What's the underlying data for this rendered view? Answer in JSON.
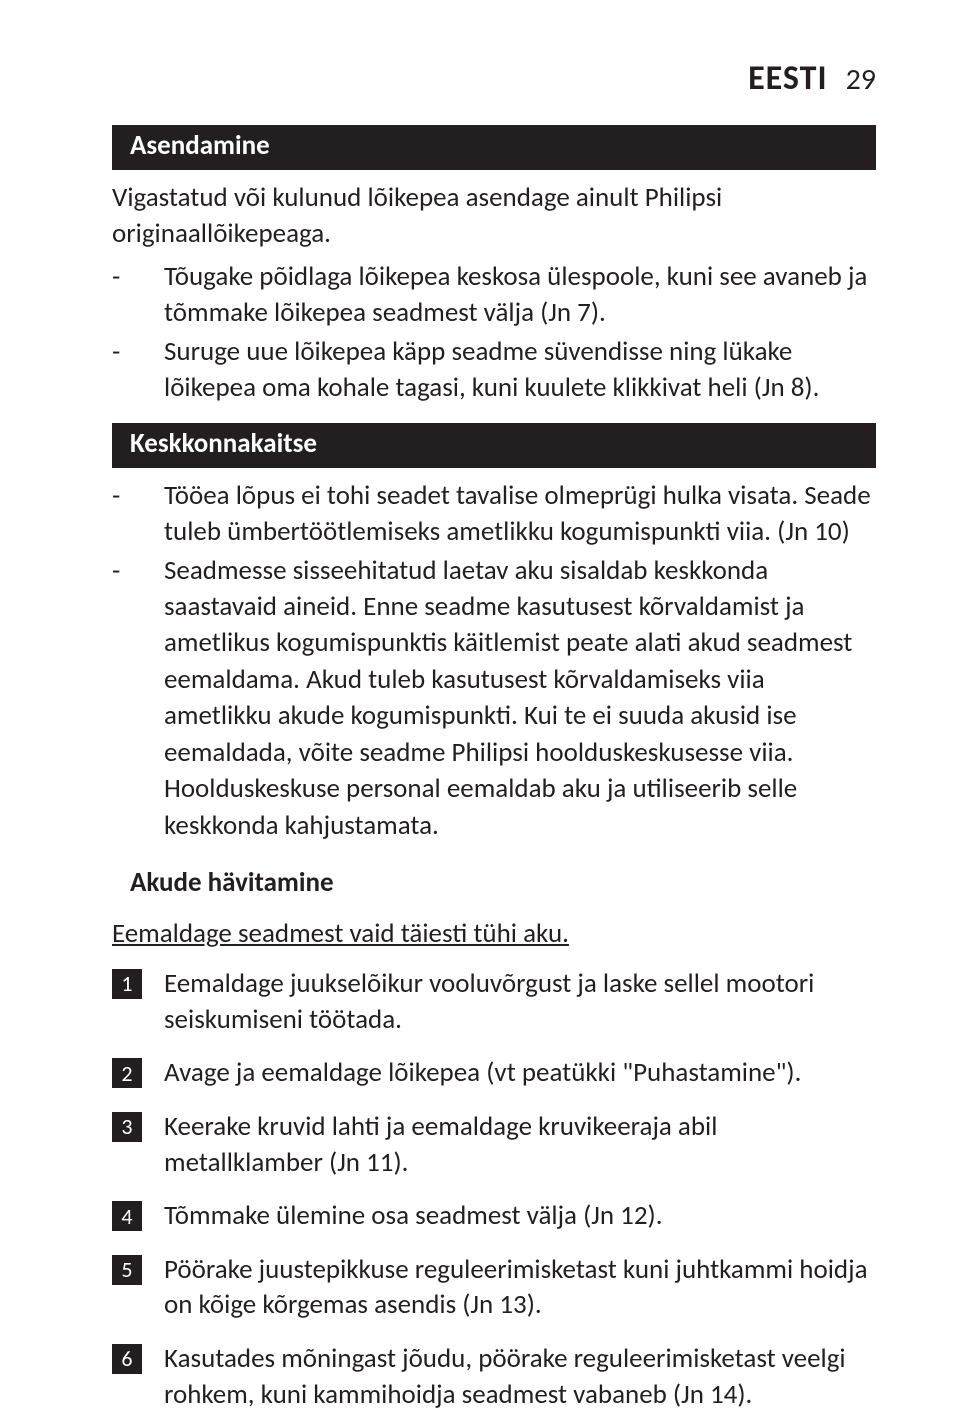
{
  "colors": {
    "bar_bg": "#231f20",
    "bar_text": "#ffffff",
    "body_text": "#231f20",
    "step_badge_bg": "#231f20",
    "step_badge_text": "#ffffff",
    "page_bg": "#ffffff"
  },
  "typography": {
    "body_pt": 20,
    "header_title_pt": 26,
    "header_page_pt": 22,
    "bar_pt": 20,
    "subhead_pt": 20,
    "step_badge_pt": 16
  },
  "header": {
    "title": "EESTI",
    "page": "29"
  },
  "sections": [
    {
      "title": "Asendamine",
      "intro": "Vigastatud või kulunud lõikepea asendage ainult Philipsi originaallõikepeaga.",
      "bullets": [
        "Tõugake põidlaga lõikepea keskosa ülespoole, kuni see avaneb ja tõmmake lõikepea seadmest välja (Jn 7).",
        "Suruge uue lõikepea käpp seadme süvendisse ning lükake lõikepea oma kohale tagasi, kuni kuulete klikkivat heli (Jn 8)."
      ]
    },
    {
      "title": "Keskkonnakaitse",
      "bullets": [
        "Tööea lõpus ei tohi seadet tavalise olmeprügi hulka visata. Seade tuleb ümbertöötlemiseks ametlikku kogumispunkti viia.  (Jn 10)",
        "Seadmesse sisseehitatud laetav aku sisaldab keskkonda saastavaid aineid. Enne seadme kasutusest kõrvaldamist ja ametlikus kogumispunktis käitlemist peate alati akud seadmest eemaldama. Akud tuleb kasutusest kõrvaldamiseks viia ametlikku akude kogumispunkti. Kui te ei suuda akusid ise eemaldada, võite seadme Philipsi hoolduskeskusesse viia. Hoolduskeskuse personal eemaldab aku ja utiliseerib selle keskkonda kahjustamata."
      ],
      "subheading": "Akude hävitamine",
      "underlined": "Eemaldage seadmest vaid täiesti tühi aku.",
      "steps": [
        "Eemaldage juukselõikur vooluvõrgust ja laske sellel mootori seiskumiseni töötada.",
        "Avage ja eemaldage lõikepea (vt peatükki \"Puhastamine\").",
        "Keerake kruvid lahti ja eemaldage kruvikeeraja abil metallklamber (Jn 11).",
        "Tõmmake ülemine osa seadmest välja (Jn 12).",
        "Pöörake juustepikkuse reguleerimisketast kuni juhtkammi hoidja on kõige kõrgemas asendis (Jn 13).",
        "Kasutades mõningast jõudu, pöörake reguleerimisketast veelgi rohkem, kuni kammihoidja seadmest vabaneb (Jn 14)."
      ]
    }
  ]
}
